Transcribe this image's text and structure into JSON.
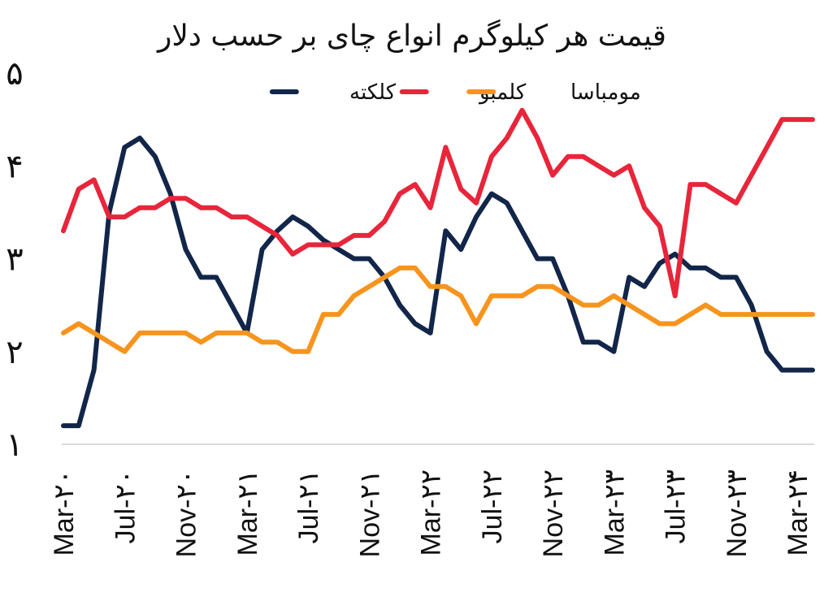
{
  "chart_data": {
    "type": "line",
    "title": "قیمت هر کیلوگرم انواع چای بر حسب دلار",
    "ylim": [
      1,
      5
    ],
    "yticks": [
      1,
      2,
      3,
      4,
      5
    ],
    "ytick_labels": [
      "۱",
      "۲",
      "۳",
      "۴",
      "۵"
    ],
    "x_tick_labels": [
      "Mar-۲۰",
      "Jul-۲۰",
      "Nov-۲۰",
      "Mar-۲۱",
      "Jul-۲۱",
      "Nov-۲۱",
      "Mar-۲۲",
      "Jul-۲۲",
      "Nov-۲۲",
      "Mar-۲۳",
      "Jul-۲۳",
      "Nov-۲۳",
      "Mar-۲۴"
    ],
    "x_tick_months": [
      "2020-03",
      "2020-07",
      "2020-11",
      "2021-03",
      "2021-07",
      "2021-11",
      "2022-03",
      "2022-07",
      "2022-11",
      "2023-03",
      "2023-07",
      "2023-11",
      "2024-03"
    ],
    "x_months": [
      "2020-03",
      "2020-04",
      "2020-05",
      "2020-06",
      "2020-07",
      "2020-08",
      "2020-09",
      "2020-10",
      "2020-11",
      "2020-12",
      "2021-01",
      "2021-02",
      "2021-03",
      "2021-04",
      "2021-05",
      "2021-06",
      "2021-07",
      "2021-08",
      "2021-09",
      "2021-10",
      "2021-11",
      "2021-12",
      "2022-01",
      "2022-02",
      "2022-03",
      "2022-04",
      "2022-05",
      "2022-06",
      "2022-07",
      "2022-08",
      "2022-09",
      "2022-10",
      "2022-11",
      "2022-12",
      "2023-01",
      "2023-02",
      "2023-03",
      "2023-04",
      "2023-05",
      "2023-06",
      "2023-07",
      "2023-08",
      "2023-09",
      "2023-10",
      "2023-11",
      "2023-12",
      "2024-01",
      "2024-02",
      "2024-03",
      "2024-04"
    ],
    "grid": false,
    "legend_position": "top",
    "series": [
      {
        "name": "کلکته",
        "color": "#12264a",
        "values": [
          1.2,
          1.2,
          1.8,
          3.5,
          4.2,
          4.3,
          4.1,
          3.7,
          3.1,
          2.8,
          2.8,
          2.5,
          2.2,
          3.1,
          3.3,
          3.45,
          3.35,
          3.2,
          3.1,
          3.0,
          3.0,
          2.8,
          2.5,
          2.3,
          2.2,
          3.3,
          3.1,
          3.45,
          3.7,
          3.6,
          3.3,
          3.0,
          3.0,
          2.6,
          2.1,
          2.1,
          2.0,
          2.8,
          2.7,
          2.95,
          3.05,
          2.9,
          2.9,
          2.8,
          2.8,
          2.5,
          2.0,
          1.8,
          1.8,
          1.8
        ]
      },
      {
        "name": "کلمبو",
        "color": "#e8253a",
        "values": [
          3.3,
          3.75,
          3.85,
          3.45,
          3.45,
          3.55,
          3.55,
          3.65,
          3.65,
          3.55,
          3.55,
          3.45,
          3.45,
          3.35,
          3.25,
          3.05,
          3.15,
          3.15,
          3.15,
          3.25,
          3.25,
          3.4,
          3.7,
          3.8,
          3.55,
          4.2,
          3.75,
          3.6,
          4.1,
          4.3,
          4.6,
          4.3,
          3.9,
          4.1,
          4.1,
          4.0,
          3.9,
          4.0,
          3.55,
          3.35,
          2.6,
          3.8,
          3.8,
          3.7,
          3.6,
          3.9,
          4.2,
          4.5,
          4.5,
          4.5
        ]
      },
      {
        "name": "مومباسا",
        "color": "#f7941d",
        "values": [
          2.2,
          2.3,
          2.2,
          2.1,
          2.0,
          2.2,
          2.2,
          2.2,
          2.2,
          2.1,
          2.2,
          2.2,
          2.2,
          2.1,
          2.1,
          2.0,
          2.0,
          2.4,
          2.4,
          2.6,
          2.7,
          2.8,
          2.9,
          2.9,
          2.7,
          2.7,
          2.6,
          2.3,
          2.6,
          2.6,
          2.6,
          2.7,
          2.7,
          2.6,
          2.5,
          2.5,
          2.6,
          2.5,
          2.4,
          2.3,
          2.3,
          2.4,
          2.5,
          2.4,
          2.4,
          2.4,
          2.4,
          2.4,
          2.4,
          2.4
        ]
      }
    ]
  }
}
